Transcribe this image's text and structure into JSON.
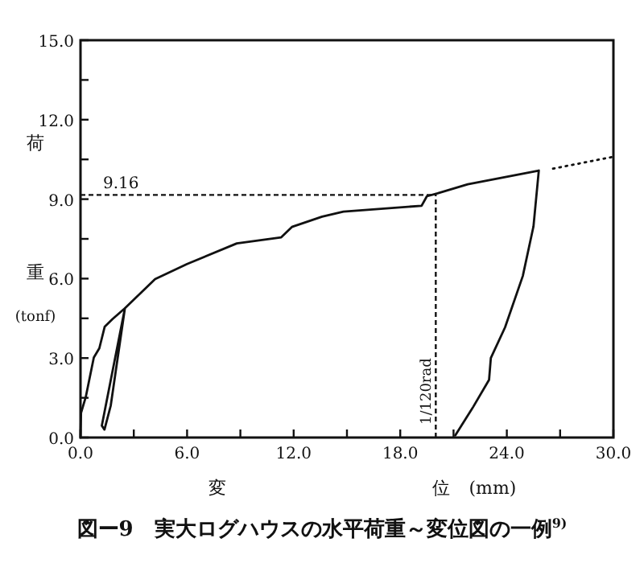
{
  "chart_data": {
    "type": "line",
    "title": "図ー9　実大ログハウスの水平荷重～変位図の一例$^{9)}$",
    "xlabel": "変 位 (mm)",
    "ylabel": "荷重(tonf)",
    "xlim": [
      0,
      30
    ],
    "ylim": [
      0,
      15
    ],
    "xticks": [
      {
        "value": 0,
        "label": "0.0"
      },
      {
        "value": 3,
        "label": null
      },
      {
        "value": 6,
        "label": "6.0"
      },
      {
        "value": 9,
        "label": null
      },
      {
        "value": 12,
        "label": "12.0"
      },
      {
        "value": 15,
        "label": null
      },
      {
        "value": 18,
        "label": "18.0"
      },
      {
        "value": 21,
        "label": null
      },
      {
        "value": 24,
        "label": "24.0"
      },
      {
        "value": 27,
        "label": null
      },
      {
        "value": 30,
        "label": "30.0"
      }
    ],
    "yticks": [
      {
        "value": 0,
        "label": "0.0"
      },
      {
        "value": 1.5,
        "label": null
      },
      {
        "value": 3,
        "label": "3.0"
      },
      {
        "value": 4.5,
        "label": null
      },
      {
        "value": 6,
        "label": "6.0"
      },
      {
        "value": 7.5,
        "label": null
      },
      {
        "value": 9,
        "label": "9.0"
      },
      {
        "value": 10.5,
        "label": null
      },
      {
        "value": 12,
        "label": "12.0"
      },
      {
        "value": 13.5,
        "label": null
      },
      {
        "value": 15,
        "label": "15.0"
      }
    ],
    "series": [
      {
        "color": "#111111",
        "line_style": "solid",
        "x": [
          0,
          0.03,
          0.3,
          0.75,
          1.06,
          1.36,
          1.8,
          2.5,
          1.2,
          1.35,
          1.7,
          2.5,
          4.2,
          6.0,
          8.8,
          11.3,
          11.9,
          13.6,
          14.8,
          19.2,
          19.5,
          20.1,
          21.8,
          25.8,
          25.5,
          24.9,
          23.9,
          23.1,
          23.0,
          22.1,
          21.1
        ],
        "values": [
          0,
          0.93,
          1.54,
          3.02,
          3.37,
          4.18,
          4.47,
          4.88,
          0.45,
          0.3,
          1.2,
          4.88,
          5.98,
          6.55,
          7.33,
          7.56,
          7.95,
          8.34,
          8.53,
          8.75,
          9.11,
          9.22,
          9.56,
          10.08,
          7.97,
          6.1,
          4.16,
          3.0,
          2.18,
          1.15,
          0.08
        ]
      },
      {
        "color": "#111111",
        "line_style": "dotted",
        "x": [
          26.6,
          30
        ],
        "values": [
          10.15,
          10.6
        ]
      }
    ],
    "ref_lines": [
      {
        "axis": "y",
        "value": 9.16,
        "label": "9.16",
        "line_style": "dashed"
      },
      {
        "axis": "x",
        "value": 20,
        "label": "1/120rad",
        "line_style": "dashed"
      }
    ],
    "grid": false,
    "marker": "none"
  }
}
